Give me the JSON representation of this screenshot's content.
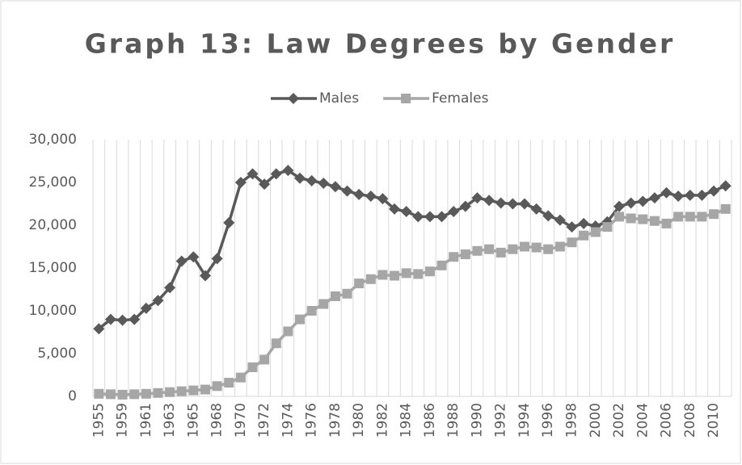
{
  "chart_data": {
    "type": "line",
    "title": "Graph 13: Law Degrees by Gender",
    "categories": [
      "1955",
      null,
      "1959",
      null,
      "1961",
      null,
      "1963",
      null,
      "1965",
      null,
      "1968",
      null,
      "1970",
      null,
      "1972",
      null,
      "1974",
      null,
      "1976",
      null,
      "1978",
      null,
      "1980",
      null,
      "1982",
      null,
      "1984",
      null,
      "1986",
      null,
      "1988",
      null,
      "1990",
      null,
      "1992",
      null,
      "1994",
      null,
      "1996",
      null,
      "1998",
      null,
      "2000",
      null,
      "2002",
      null,
      "2004",
      null,
      "2006",
      null,
      "2008",
      null,
      "2010",
      null
    ],
    "series": [
      {
        "name": "Males",
        "color": "#595959",
        "marker": "diamond",
        "values": [
          7900,
          9000,
          8900,
          9000,
          10300,
          11200,
          12700,
          15800,
          16300,
          14100,
          16100,
          20300,
          25000,
          26000,
          24800,
          26000,
          26400,
          25500,
          25200,
          24900,
          24500,
          24000,
          23600,
          23400,
          23100,
          21900,
          21600,
          21000,
          21000,
          21000,
          21600,
          22200,
          23200,
          22900,
          22600,
          22500,
          22500,
          21900,
          21100,
          20600,
          19800,
          20200,
          19900,
          20400,
          22200,
          22600,
          22800,
          23200,
          23800,
          23400,
          23500,
          23500,
          24000,
          24600
        ]
      },
      {
        "name": "Females",
        "color": "#a6a6a6",
        "marker": "square",
        "values": [
          300,
          250,
          200,
          250,
          300,
          400,
          500,
          600,
          700,
          800,
          1200,
          1600,
          2200,
          3400,
          4300,
          6200,
          7600,
          9000,
          10000,
          10800,
          11700,
          12000,
          13200,
          13700,
          14200,
          14100,
          14400,
          14300,
          14600,
          15300,
          16300,
          16600,
          17000,
          17200,
          16800,
          17200,
          17500,
          17400,
          17200,
          17500,
          18000,
          18800,
          19200,
          19800,
          21000,
          20800,
          20700,
          20500,
          20200,
          21000,
          21000,
          21000,
          21300,
          21900
        ]
      }
    ],
    "ylim": [
      0,
      30000
    ],
    "yticks": [
      0,
      {
        "value": 5000,
        "label": "5,000"
      },
      {
        "value": 10000,
        "label": "10,000"
      },
      {
        "value": 15000,
        "label": "15,000"
      },
      {
        "value": 20000,
        "label": "20,000"
      },
      {
        "value": 25000,
        "label": "25,000"
      },
      {
        "value": 30000,
        "label": "30,000"
      }
    ],
    "grid": "x",
    "legend": "top"
  }
}
